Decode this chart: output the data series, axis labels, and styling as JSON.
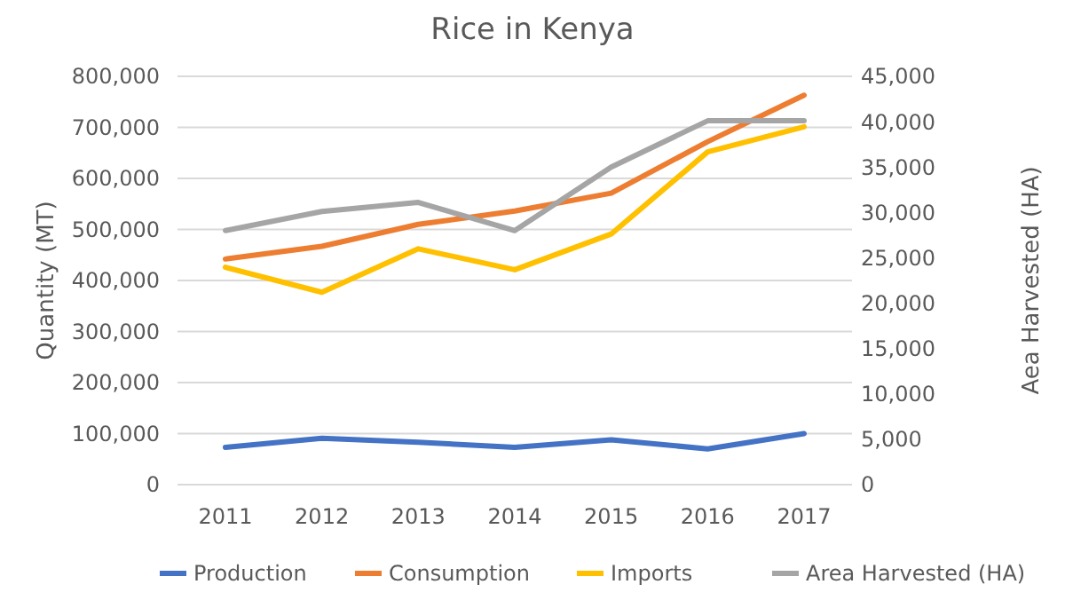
{
  "chart_data": {
    "type": "line",
    "title": "Rice in Kenya",
    "ylabel": "Quantity (MT)",
    "y2label": "Aea Harvested (HA)",
    "categories": [
      "2011",
      "2012",
      "2013",
      "2014",
      "2015",
      "2016",
      "2017"
    ],
    "series": [
      {
        "name": "Production",
        "color": "#4472c4",
        "values": [
          73000,
          91000,
          83000,
          73000,
          88000,
          70000,
          100000
        ]
      },
      {
        "name": "Consumption",
        "color": "#ed7d31",
        "values": [
          442000,
          467000,
          510000,
          536000,
          571000,
          672000,
          763000
        ]
      },
      {
        "name": "Imports",
        "color": "#ffc000",
        "values": [
          426000,
          377000,
          462000,
          421000,
          491000,
          652000,
          701000
        ]
      },
      {
        "name": "Area Harvested (HA)",
        "color": "#a5a5a5",
        "axis": "y2",
        "values": [
          28000,
          30100,
          31100,
          28000,
          35000,
          40100,
          40100
        ]
      }
    ],
    "ylim": [
      0,
      800000
    ],
    "yticks": [
      {
        "value": 0,
        "label": "0"
      },
      {
        "value": 100000,
        "label": "100,000"
      },
      {
        "value": 200000,
        "label": "200,000"
      },
      {
        "value": 300000,
        "label": "300,000"
      },
      {
        "value": 400000,
        "label": "400,000"
      },
      {
        "value": 500000,
        "label": "500,000"
      },
      {
        "value": 600000,
        "label": "600,000"
      },
      {
        "value": 700000,
        "label": "700,000"
      },
      {
        "value": 800000,
        "label": "800,000"
      }
    ],
    "y2lim": [
      0,
      45000
    ],
    "y2ticks": [
      {
        "value": 0,
        "label": "0"
      },
      {
        "value": 5000,
        "label": "5,000"
      },
      {
        "value": 10000,
        "label": "10,000"
      },
      {
        "value": 15000,
        "label": "15,000"
      },
      {
        "value": 20000,
        "label": "20,000"
      },
      {
        "value": 25000,
        "label": "25,000"
      },
      {
        "value": 30000,
        "label": "30,000"
      },
      {
        "value": 35000,
        "label": "35,000"
      },
      {
        "value": 40000,
        "label": "40,000"
      },
      {
        "value": 45000,
        "label": "45,000"
      }
    ],
    "grid": "y",
    "legend": "bottom",
    "marker": "none",
    "line_style": "solid"
  }
}
